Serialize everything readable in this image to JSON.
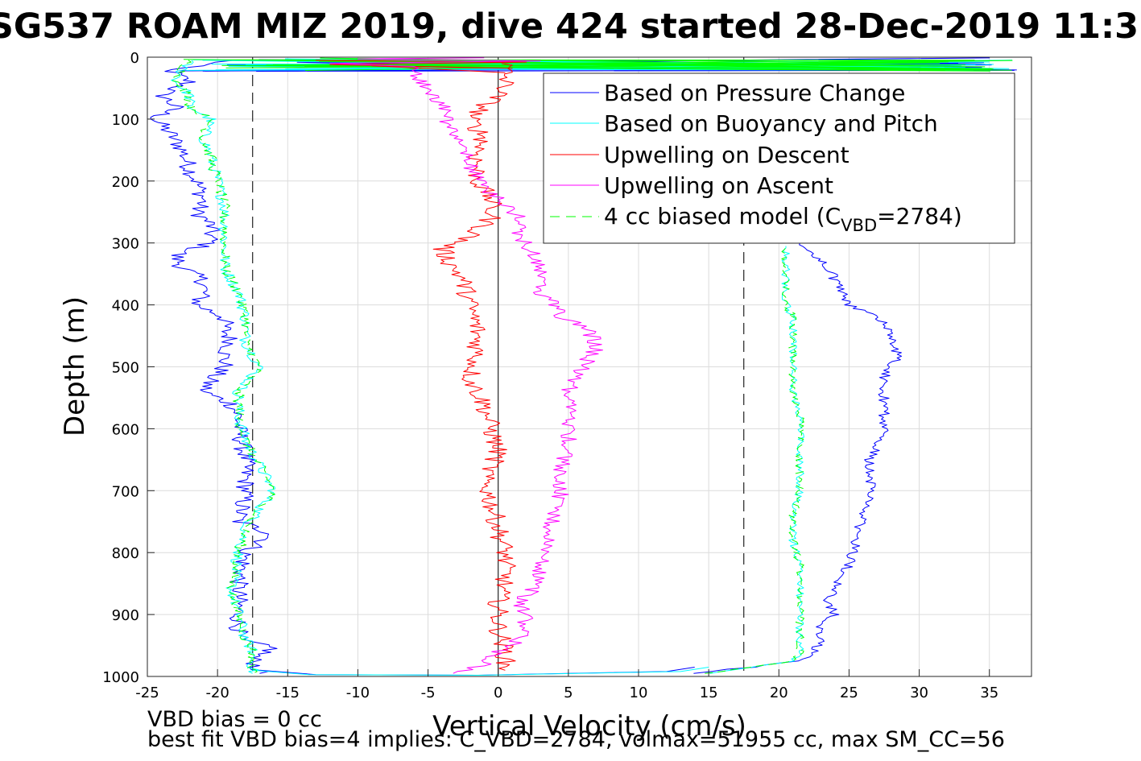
{
  "chart_data": {
    "type": "line",
    "title": "SG537 ROAM MIZ 2019, dive 424 started 28-Dec-2019 11:3",
    "xlabel": "Vertical Velocity (cm/s)",
    "ylabel": "Depth (m)",
    "xlim": [
      -25,
      38
    ],
    "ylim": [
      0,
      1000
    ],
    "y_reversed": true,
    "grid": true,
    "x_ticks": [
      "-25",
      "-20",
      "-15",
      "-10",
      "-5",
      "0",
      "5",
      "10",
      "15",
      "20",
      "25",
      "30",
      "35"
    ],
    "y_ticks": [
      "0",
      "100",
      "200",
      "300",
      "400",
      "500",
      "600",
      "700",
      "800",
      "900",
      "1000"
    ],
    "legend_position": "top-right",
    "legend": [
      {
        "label": "Based on Pressure Change",
        "color": "#0000ff",
        "style": "solid"
      },
      {
        "label": "Based on Buoyancy and Pitch",
        "color": "#00ffff",
        "style": "solid"
      },
      {
        "label": "Upwelling on Descent",
        "color": "#ff0000",
        "style": "solid"
      },
      {
        "label": "Upwelling on Ascent",
        "color": "#ff00ff",
        "style": "solid"
      },
      {
        "label_prefix": "4 cc biased model (C",
        "label_sub": "VBD",
        "label_suffix": "=2784)",
        "color": "#00ff00",
        "style": "dashed"
      }
    ],
    "reference_lines": {
      "dashed_x": [
        -17.5,
        17.5
      ],
      "zero_line_x": 0
    },
    "series": [
      {
        "name": "Based on Pressure Change",
        "color": "#0000ff",
        "depth_descent": [
          5,
          20,
          40,
          60,
          80,
          100,
          120,
          150,
          180,
          200,
          230,
          250,
          270,
          300,
          320,
          340,
          360,
          380,
          400,
          420,
          440,
          460,
          480,
          500,
          520,
          540,
          560,
          580,
          600,
          650,
          700,
          750,
          770,
          800,
          850,
          900,
          940,
          955,
          970,
          995
        ],
        "vel_descent": [
          -19,
          -23.5,
          -22,
          -24,
          -23,
          -24.5,
          -23.5,
          -22.5,
          -22,
          -21.5,
          -21,
          -21.5,
          -20.5,
          -20.5,
          -23,
          -22.5,
          -21,
          -21,
          -21.5,
          -19.5,
          -19.5,
          -19,
          -19.5,
          -19.5,
          -20.5,
          -21,
          -19,
          -18.5,
          -18.5,
          -18,
          -18,
          -18.5,
          -16,
          -18,
          -18.5,
          -18.5,
          -18.5,
          -16,
          -17.5,
          -17
        ],
        "depth_ascent": [
          995,
          985,
          975,
          965,
          940,
          920,
          900,
          880,
          860,
          820,
          780,
          740,
          700,
          650,
          600,
          560,
          520,
          500,
          480,
          460,
          440,
          420,
          400,
          380,
          360,
          340,
          320,
          300
        ],
        "vel_ascent": [
          14,
          18,
          21,
          22.5,
          23,
          23,
          24,
          23.5,
          24,
          25,
          25.5,
          26,
          26.5,
          26.5,
          27.5,
          27.5,
          27.5,
          28,
          28.5,
          28,
          28,
          27,
          25,
          24.5,
          24,
          23.5,
          22.5,
          21.5
        ]
      },
      {
        "name": "Based on Buoyancy and Pitch",
        "color": "#00ffff",
        "depth_descent": [
          5,
          20,
          40,
          60,
          80,
          100,
          130,
          160,
          200,
          240,
          280,
          300,
          340,
          380,
          420,
          460,
          500,
          540,
          580,
          620,
          700,
          760,
          800,
          860,
          900,
          940,
          960,
          995
        ],
        "vel_descent": [
          -22,
          -22.5,
          -23,
          -22,
          -22,
          -20.5,
          -21,
          -20.5,
          -20,
          -19.5,
          -19.5,
          -19.5,
          -19.5,
          -18.5,
          -18,
          -18,
          -17,
          -18.5,
          -18.5,
          -18,
          -16,
          -18,
          -18.5,
          -19,
          -18.5,
          -18,
          -17.5,
          -17.5
        ],
        "depth_ascent": [
          995,
          985,
          975,
          965,
          940,
          900,
          860,
          820,
          780,
          740,
          700,
          660,
          620,
          580,
          540,
          500,
          460,
          420,
          400,
          380,
          360,
          340,
          320,
          305
        ],
        "vel_ascent": [
          15,
          18,
          21,
          21.5,
          21.5,
          21.5,
          21.5,
          21.5,
          21,
          21,
          21.5,
          21.5,
          21.5,
          21.5,
          21,
          21,
          21,
          21,
          20.5,
          20.5,
          20.5,
          20.5,
          20.5,
          20.5
        ]
      },
      {
        "name": "Upwelling on Descent",
        "color": "#ff0000",
        "depth": [
          10,
          30,
          50,
          80,
          100,
          130,
          160,
          200,
          230,
          260,
          290,
          310,
          330,
          360,
          400,
          440,
          480,
          520,
          560,
          600,
          640,
          680,
          720,
          760,
          800,
          840,
          880,
          920,
          960,
          990
        ],
        "vel": [
          0.5,
          0.5,
          0.5,
          -1,
          -2,
          -1,
          -1.5,
          -1.5,
          -0.5,
          -0.5,
          -2,
          -4,
          -3.5,
          -2.5,
          -2,
          -1.5,
          -1.5,
          -2,
          -1,
          -0.5,
          0,
          -1,
          -0.5,
          0,
          0.5,
          0.5,
          0,
          0,
          0.5,
          0.5
        ]
      },
      {
        "name": "Upwelling on Ascent",
        "color": "#ff00ff",
        "depth": [
          995,
          980,
          960,
          940,
          900,
          880,
          860,
          820,
          780,
          740,
          700,
          660,
          620,
          580,
          540,
          500,
          470,
          440,
          420,
          400,
          380,
          350,
          320,
          290,
          260,
          230,
          200,
          170,
          140,
          110,
          80,
          50,
          30,
          15
        ],
        "vel": [
          -3,
          -1,
          0,
          1.5,
          2,
          1.5,
          2.5,
          3,
          3.5,
          4,
          4.5,
          4.5,
          5,
          5,
          5,
          6,
          7,
          6.5,
          4.5,
          4,
          3,
          3,
          2.5,
          1.5,
          1.5,
          0,
          -1.5,
          -2,
          -3,
          -3.5,
          -4,
          -5,
          -6,
          -6
        ]
      },
      {
        "name": "4 cc biased model (CVBD=2784)",
        "color": "#00ff00",
        "depth_descent": [
          5,
          20,
          40,
          60,
          80,
          100,
          130,
          160,
          200,
          240,
          280,
          300,
          340,
          380,
          420,
          460,
          500,
          540,
          580,
          620,
          700,
          760,
          800,
          860,
          900,
          940,
          960,
          995
        ],
        "vel_descent": [
          -22,
          -22.5,
          -23,
          -22,
          -22,
          -20.5,
          -21,
          -20.5,
          -20,
          -19.5,
          -19.5,
          -19.5,
          -19.5,
          -18.5,
          -18,
          -18,
          -17,
          -18.5,
          -18.5,
          -18,
          -16,
          -18,
          -18.5,
          -19,
          -18.5,
          -18,
          -17.5,
          -17.5
        ],
        "depth_ascent": [
          995,
          985,
          975,
          965,
          940,
          900,
          860,
          820,
          780,
          740,
          700,
          660,
          620,
          580,
          540,
          500,
          460,
          420,
          400,
          380,
          360,
          340,
          320,
          305
        ],
        "vel_ascent": [
          15,
          18,
          21,
          21.5,
          21.5,
          21.5,
          21.5,
          21.5,
          21,
          21,
          21.5,
          21.5,
          21.5,
          21.5,
          21,
          21,
          21,
          21,
          20.5,
          20.5,
          20.5,
          20.5,
          20.5,
          20.5
        ]
      }
    ]
  },
  "footer": {
    "line1": "VBD bias = 0 cc",
    "line2": "best fit VBD bias=4 implies: C_VBD=2784, volmax=51955 cc, max SM_CC=56"
  }
}
